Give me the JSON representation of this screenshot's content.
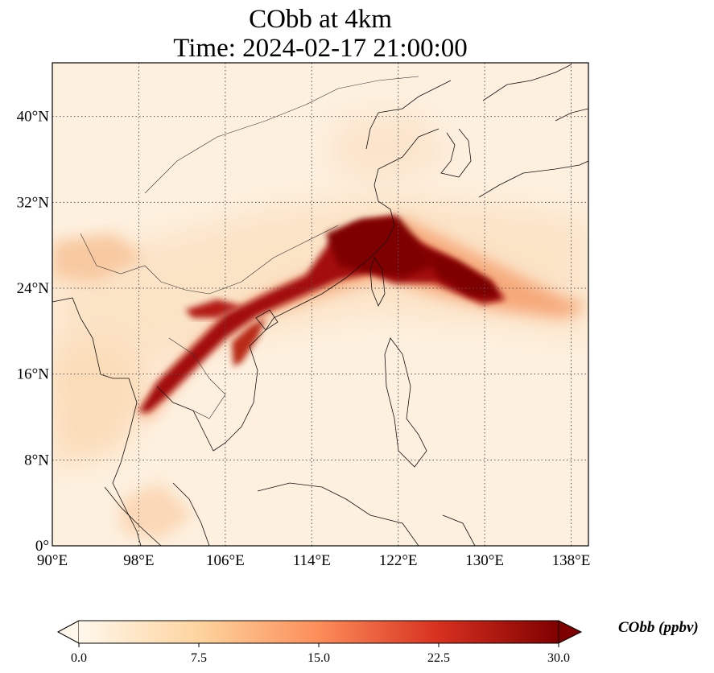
{
  "title": {
    "line1": "CObb at 4km",
    "line2": "Time: 2024-02-17 21:00:00"
  },
  "map": {
    "variable": "CObb",
    "lon_ticks": [
      "90°E",
      "98°E",
      "106°E",
      "114°E",
      "122°E",
      "130°E",
      "138°E"
    ],
    "lat_ticks": [
      "0°",
      "8°N",
      "16°N",
      "24°N",
      "32°N",
      "40°N"
    ],
    "lon_values": [
      90,
      98,
      106,
      114,
      122,
      130,
      138
    ],
    "lat_values": [
      0,
      8,
      16,
      24,
      32,
      40
    ],
    "extent": {
      "lon_min": 90,
      "lon_max": 139.6,
      "lat_min": 0,
      "lat_max": 45
    },
    "gridlines": true,
    "plume": [
      {
        "lon": 98,
        "lat": 13
      },
      {
        "lon": 103,
        "lat": 18
      },
      {
        "lon": 108,
        "lat": 22
      },
      {
        "lon": 114,
        "lat": 24.5
      },
      {
        "lon": 117,
        "lat": 28
      },
      {
        "lon": 122,
        "lat": 28
      },
      {
        "lon": 128,
        "lat": 26
      },
      {
        "lon": 132,
        "lat": 23.5
      }
    ]
  },
  "colorbar": {
    "label": "CObb (ppbv)",
    "ticks": [
      "0.0",
      "7.5",
      "15.0",
      "22.5",
      "30.0"
    ],
    "min": 0,
    "max": 30,
    "extend": "both",
    "colors": [
      "#fff7ec",
      "#fdd49e",
      "#fc8d59",
      "#d7301f",
      "#7f0000"
    ]
  }
}
